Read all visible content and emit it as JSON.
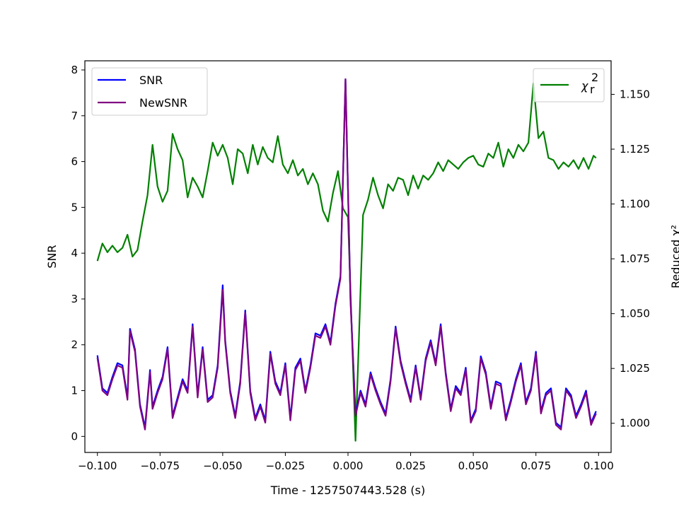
{
  "chart_data": {
    "type": "line",
    "xlabel": "Time - 1257507443.528 (s)",
    "ylabel_left": "SNR",
    "ylabel_right": "Reduced χ²",
    "xlim": [
      -0.105,
      0.105
    ],
    "ylim_left": [
      -0.35,
      8.2
    ],
    "ylim_right": [
      0.9867,
      1.1653
    ],
    "x_ticks": [
      -0.1,
      -0.075,
      -0.05,
      -0.025,
      0.0,
      0.025,
      0.05,
      0.075,
      0.1
    ],
    "x_tick_labels": [
      "−0.100",
      "−0.075",
      "−0.050",
      "−0.025",
      "0.000",
      "0.025",
      "0.050",
      "0.075",
      "0.100"
    ],
    "y_left_ticks": [
      0,
      1,
      2,
      3,
      4,
      5,
      6,
      7,
      8
    ],
    "y_left_tick_labels": [
      "0",
      "1",
      "2",
      "3",
      "4",
      "5",
      "6",
      "7",
      "8"
    ],
    "y_right_ticks": [
      1.0,
      1.025,
      1.05,
      1.075,
      1.1,
      1.125,
      1.15
    ],
    "y_right_tick_labels": [
      "1.000",
      "1.025",
      "1.050",
      "1.075",
      "1.100",
      "1.125",
      "1.150"
    ],
    "legend_left": {
      "placement": "upper-left",
      "entries": [
        "SNR",
        "NewSNR"
      ]
    },
    "legend_right": {
      "placement": "upper-right",
      "entries": [
        "χ",
        "r",
        "2"
      ]
    },
    "colors": {
      "snr": "#0000ff",
      "newsnr": "#800080",
      "chisq": "#008000"
    },
    "series": [
      {
        "name": "SNR",
        "axis": "left",
        "x": [
          -0.1,
          -0.098,
          -0.096,
          -0.094,
          -0.092,
          -0.09,
          -0.088,
          -0.087,
          -0.085,
          -0.083,
          -0.081,
          -0.079,
          -0.078,
          -0.076,
          -0.074,
          -0.072,
          -0.07,
          -0.068,
          -0.066,
          -0.064,
          -0.062,
          -0.06,
          -0.058,
          -0.056,
          -0.054,
          -0.052,
          -0.05,
          -0.049,
          -0.047,
          -0.045,
          -0.043,
          -0.041,
          -0.039,
          -0.037,
          -0.035,
          -0.033,
          -0.031,
          -0.029,
          -0.027,
          -0.025,
          -0.023,
          -0.021,
          -0.019,
          -0.017,
          -0.015,
          -0.013,
          -0.011,
          -0.009,
          -0.007,
          -0.005,
          -0.003,
          -0.001,
          0.001,
          0.003,
          0.005,
          0.007,
          0.009,
          0.011,
          0.013,
          0.015,
          0.017,
          0.019,
          0.021,
          0.023,
          0.025,
          0.027,
          0.029,
          0.031,
          0.033,
          0.035,
          0.037,
          0.039,
          0.041,
          0.043,
          0.045,
          0.047,
          0.049,
          0.051,
          0.053,
          0.055,
          0.057,
          0.059,
          0.061,
          0.063,
          0.065,
          0.067,
          0.069,
          0.071,
          0.073,
          0.075,
          0.077,
          0.079,
          0.081,
          0.083,
          0.085,
          0.087,
          0.089,
          0.091,
          0.093,
          0.095,
          0.097,
          0.099
        ],
        "values": [
          1.77,
          1.05,
          0.95,
          1.3,
          1.6,
          1.55,
          0.85,
          2.35,
          1.9,
          0.7,
          0.2,
          1.45,
          0.65,
          1.0,
          1.3,
          1.95,
          0.45,
          0.85,
          1.25,
          1.0,
          2.45,
          0.9,
          1.95,
          0.8,
          0.9,
          1.55,
          3.3,
          2.1,
          1.0,
          0.45,
          1.2,
          2.75,
          1.0,
          0.4,
          0.7,
          0.35,
          1.85,
          1.2,
          0.95,
          1.6,
          0.4,
          1.5,
          1.7,
          1.0,
          1.55,
          2.25,
          2.2,
          2.45,
          2.05,
          2.9,
          3.5,
          7.8,
          3.0,
          0.5,
          1.0,
          0.7,
          1.4,
          1.05,
          0.75,
          0.5,
          1.25,
          2.4,
          1.65,
          1.2,
          0.8,
          1.55,
          0.85,
          1.7,
          2.1,
          1.6,
          2.45,
          1.4,
          0.6,
          1.1,
          0.95,
          1.5,
          0.35,
          0.6,
          1.75,
          1.4,
          0.65,
          1.2,
          1.15,
          0.4,
          0.8,
          1.25,
          1.6,
          0.75,
          1.05,
          1.85,
          0.55,
          0.95,
          1.05,
          0.3,
          0.2,
          1.05,
          0.9,
          0.45,
          0.7,
          1.0,
          0.3,
          0.55
        ]
      },
      {
        "name": "NewSNR",
        "axis": "left",
        "x": [
          -0.1,
          -0.098,
          -0.096,
          -0.094,
          -0.092,
          -0.09,
          -0.088,
          -0.087,
          -0.085,
          -0.083,
          -0.081,
          -0.079,
          -0.078,
          -0.076,
          -0.074,
          -0.072,
          -0.07,
          -0.068,
          -0.066,
          -0.064,
          -0.062,
          -0.06,
          -0.058,
          -0.056,
          -0.054,
          -0.052,
          -0.05,
          -0.049,
          -0.047,
          -0.045,
          -0.043,
          -0.041,
          -0.039,
          -0.037,
          -0.035,
          -0.033,
          -0.031,
          -0.029,
          -0.027,
          -0.025,
          -0.023,
          -0.021,
          -0.019,
          -0.017,
          -0.015,
          -0.013,
          -0.011,
          -0.009,
          -0.007,
          -0.005,
          -0.003,
          -0.001,
          0.001,
          0.003,
          0.005,
          0.007,
          0.009,
          0.011,
          0.013,
          0.015,
          0.017,
          0.019,
          0.021,
          0.023,
          0.025,
          0.027,
          0.029,
          0.031,
          0.033,
          0.035,
          0.037,
          0.039,
          0.041,
          0.043,
          0.045,
          0.047,
          0.049,
          0.051,
          0.053,
          0.055,
          0.057,
          0.059,
          0.061,
          0.063,
          0.065,
          0.067,
          0.069,
          0.071,
          0.073,
          0.075,
          0.077,
          0.079,
          0.081,
          0.083,
          0.085,
          0.087,
          0.089,
          0.091,
          0.093,
          0.095,
          0.097,
          0.099
        ],
        "values": [
          1.72,
          1.0,
          0.9,
          1.25,
          1.55,
          1.5,
          0.8,
          2.3,
          1.85,
          0.65,
          0.15,
          1.4,
          0.6,
          0.95,
          1.25,
          1.9,
          0.4,
          0.8,
          1.2,
          0.95,
          2.4,
          0.85,
          1.9,
          0.75,
          0.85,
          1.5,
          3.2,
          2.05,
          0.95,
          0.4,
          1.15,
          2.7,
          0.95,
          0.35,
          0.65,
          0.3,
          1.8,
          1.15,
          0.9,
          1.55,
          0.35,
          1.45,
          1.65,
          0.95,
          1.5,
          2.2,
          2.15,
          2.4,
          2.0,
          2.85,
          3.45,
          7.8,
          2.95,
          0.45,
          0.95,
          0.65,
          1.35,
          1.0,
          0.7,
          0.45,
          1.2,
          2.35,
          1.6,
          1.15,
          0.75,
          1.5,
          0.8,
          1.65,
          2.05,
          1.55,
          2.4,
          1.35,
          0.55,
          1.05,
          0.9,
          1.45,
          0.3,
          0.55,
          1.7,
          1.35,
          0.6,
          1.15,
          1.1,
          0.35,
          0.75,
          1.2,
          1.55,
          0.7,
          1.0,
          1.8,
          0.5,
          0.9,
          1.0,
          0.25,
          0.15,
          1.0,
          0.85,
          0.4,
          0.65,
          0.95,
          0.25,
          0.5
        ]
      },
      {
        "name": "χ²_r",
        "axis": "right",
        "x": [
          -0.1,
          -0.098,
          -0.096,
          -0.094,
          -0.092,
          -0.09,
          -0.088,
          -0.086,
          -0.084,
          -0.082,
          -0.08,
          -0.078,
          -0.076,
          -0.074,
          -0.072,
          -0.07,
          -0.068,
          -0.066,
          -0.064,
          -0.062,
          -0.06,
          -0.058,
          -0.056,
          -0.054,
          -0.052,
          -0.05,
          -0.048,
          -0.046,
          -0.044,
          -0.042,
          -0.04,
          -0.038,
          -0.036,
          -0.034,
          -0.032,
          -0.03,
          -0.028,
          -0.026,
          -0.024,
          -0.022,
          -0.02,
          -0.018,
          -0.016,
          -0.014,
          -0.012,
          -0.01,
          -0.008,
          -0.006,
          -0.004,
          -0.002,
          0.0,
          0.003,
          0.006,
          0.008,
          0.01,
          0.012,
          0.014,
          0.016,
          0.018,
          0.02,
          0.022,
          0.024,
          0.026,
          0.028,
          0.03,
          0.032,
          0.034,
          0.036,
          0.038,
          0.04,
          0.042,
          0.044,
          0.046,
          0.048,
          0.05,
          0.052,
          0.054,
          0.056,
          0.058,
          0.06,
          0.062,
          0.064,
          0.066,
          0.068,
          0.07,
          0.072,
          0.074,
          0.076,
          0.078,
          0.08,
          0.082,
          0.084,
          0.086,
          0.088,
          0.09,
          0.092,
          0.094,
          0.096,
          0.098,
          0.099
        ],
        "values": [
          1.074,
          1.082,
          1.078,
          1.081,
          1.078,
          1.08,
          1.086,
          1.076,
          1.079,
          1.092,
          1.104,
          1.127,
          1.108,
          1.101,
          1.106,
          1.132,
          1.125,
          1.12,
          1.103,
          1.112,
          1.108,
          1.103,
          1.115,
          1.128,
          1.122,
          1.127,
          1.121,
          1.109,
          1.125,
          1.123,
          1.114,
          1.127,
          1.118,
          1.126,
          1.121,
          1.119,
          1.131,
          1.118,
          1.114,
          1.12,
          1.113,
          1.116,
          1.109,
          1.114,
          1.109,
          1.097,
          1.092,
          1.105,
          1.115,
          1.098,
          1.094,
          0.992,
          1.095,
          1.102,
          1.112,
          1.104,
          1.098,
          1.109,
          1.106,
          1.112,
          1.111,
          1.104,
          1.113,
          1.107,
          1.113,
          1.111,
          1.114,
          1.119,
          1.115,
          1.12,
          1.118,
          1.116,
          1.119,
          1.121,
          1.122,
          1.118,
          1.117,
          1.123,
          1.121,
          1.128,
          1.117,
          1.125,
          1.121,
          1.127,
          1.124,
          1.128,
          1.155,
          1.13,
          1.133,
          1.121,
          1.12,
          1.116,
          1.119,
          1.117,
          1.12,
          1.116,
          1.121,
          1.116,
          1.122,
          1.121
        ]
      }
    ]
  }
}
